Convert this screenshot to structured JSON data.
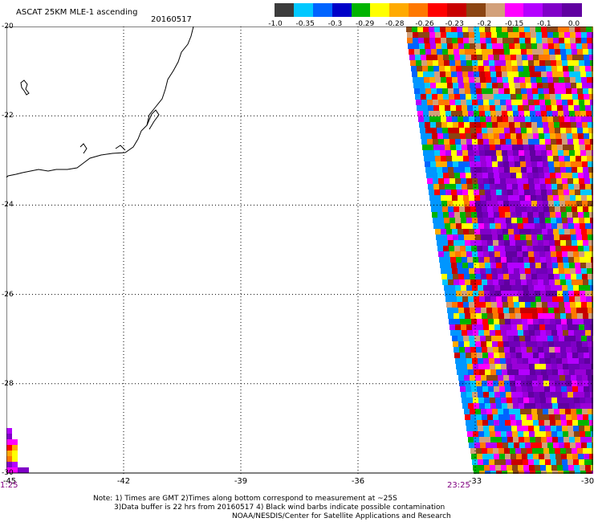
{
  "header": {
    "title": "ASCAT 25KM MLE-1 ascending",
    "date": "20160517"
  },
  "legend": {
    "colors": [
      "#3c3c3c",
      "#00c8ff",
      "#0064ff",
      "#0000c8",
      "#00b400",
      "#ffff00",
      "#ffaa00",
      "#ff7800",
      "#ff0000",
      "#c80000",
      "#8b4513",
      "#d2a07a",
      "#ff00ff",
      "#b400ff",
      "#8000c8",
      "#6000a0"
    ],
    "ticks": [
      "-1.0",
      "-0.35",
      "-0.3",
      "-0.29",
      "-0.28",
      "-0.26",
      "-0.23",
      "-0.2",
      "-0.15",
      "-0.1",
      "0.0"
    ]
  },
  "map": {
    "lat_labels": [
      "-20",
      "-22",
      "-24",
      "-26",
      "-28",
      "-30"
    ],
    "lon_labels": [
      "-45",
      "-42",
      "-39",
      "-36",
      "-33",
      "-30"
    ],
    "lon_range": [
      -45,
      -30
    ],
    "lat_range": [
      -20,
      -30
    ],
    "grid": "dotted"
  },
  "times": {
    "left": "1:25",
    "right": "23:25"
  },
  "notes": {
    "line1": "Note: 1) Times are GMT 2)Times along bottom correspond to measurement at ~25S",
    "line2": "3)Data buffer is 22 hrs from 20160517 4) Black wind barbs indicate possible contamination",
    "line3": "NOAA/NESDIS/Center for Satellite Applications and Research"
  }
}
